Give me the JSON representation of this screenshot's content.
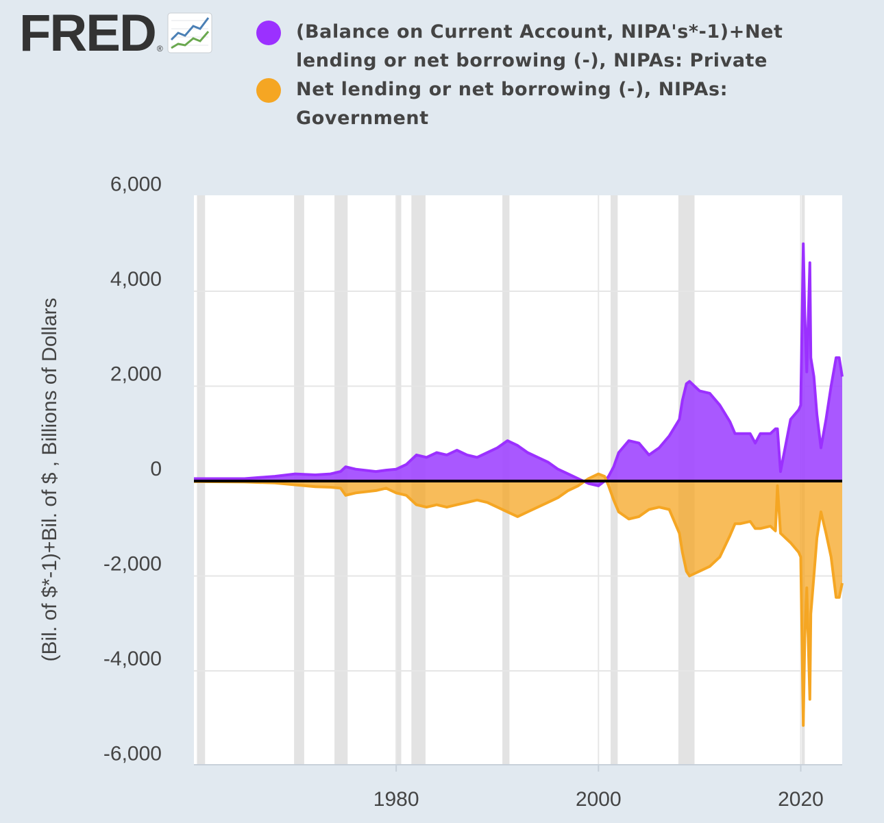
{
  "logo": {
    "text": "FRED",
    "reg": "®",
    "icon": "line-chart-icon"
  },
  "chart_data": {
    "type": "area",
    "ylabel": "(Bil. of $*-1)+Bil. of $ , Billions of Dollars",
    "xlabel": "",
    "ylim": [
      -6000,
      6000
    ],
    "xlim": [
      1960,
      2024.1
    ],
    "ytick_labels": [
      "6,000",
      "4,000",
      "2,000",
      "0",
      "-2,000",
      "-4,000",
      "-6,000"
    ],
    "yticks": [
      6000,
      4000,
      2000,
      0,
      -2000,
      -4000,
      -6000
    ],
    "xtick_labels": [
      "1980",
      "2000",
      "2020"
    ],
    "xticks": [
      1980,
      2000,
      2020
    ],
    "grid": true,
    "legend_position": "top",
    "recessions": [
      [
        1960.3,
        1961.1
      ],
      [
        1969.9,
        1970.9
      ],
      [
        1973.9,
        1975.2
      ],
      [
        1980.0,
        1980.5
      ],
      [
        1981.5,
        1982.9
      ],
      [
        1990.5,
        1991.2
      ],
      [
        2001.2,
        2001.9
      ],
      [
        2007.9,
        2009.5
      ],
      [
        2020.1,
        2020.4
      ]
    ],
    "series": [
      {
        "name": "(Balance on Current Account, NIPA's*-1)+Net lending or net borrowing (-), NIPAs: Private",
        "color": "#9b30ff",
        "x": [
          1960,
          1965,
          1968,
          1970,
          1972,
          1973.5,
          1974.5,
          1975,
          1976,
          1978,
          1979,
          1980,
          1981,
          1982,
          1983,
          1984,
          1985,
          1986,
          1987,
          1988,
          1989,
          1990,
          1991,
          1992,
          1993,
          1994,
          1995,
          1996,
          1997,
          1998,
          1999,
          2000,
          2000.6,
          2001,
          2001.5,
          2002,
          2003,
          2004,
          2005,
          2006,
          2007,
          2008,
          2008.3,
          2008.7,
          2009,
          2009.5,
          2010,
          2011,
          2012,
          2013,
          2013.5,
          2014,
          2015,
          2015.5,
          2016,
          2017,
          2017.5,
          2017.7,
          2018,
          2019,
          2019.8,
          2020.0,
          2020.25,
          2020.4,
          2020.6,
          2020.9,
          2021.0,
          2021.3,
          2021.6,
          2022,
          2022.5,
          2023,
          2023.5,
          2023.8,
          2024.1
        ],
        "values": [
          50,
          50,
          100,
          150,
          130,
          150,
          200,
          300,
          250,
          200,
          230,
          250,
          350,
          550,
          500,
          600,
          550,
          650,
          550,
          500,
          600,
          700,
          850,
          750,
          600,
          500,
          400,
          250,
          150,
          50,
          -50,
          -100,
          0,
          100,
          300,
          600,
          850,
          800,
          550,
          700,
          950,
          1300,
          1700,
          2050,
          2100,
          2000,
          1900,
          1850,
          1600,
          1250,
          1000,
          1000,
          1000,
          800,
          1000,
          1000,
          1100,
          1100,
          200,
          1300,
          1500,
          1600,
          5000,
          3500,
          2300,
          4600,
          2600,
          2200,
          1400,
          700,
          1300,
          2000,
          2600,
          2600,
          2200
        ]
      },
      {
        "name": "Net lending or net borrowing (-), NIPAs: Government",
        "color": "#f5a623",
        "x": [
          1960,
          1965,
          1968,
          1970,
          1972,
          1973.5,
          1974.5,
          1975,
          1976,
          1978,
          1979,
          1980,
          1981,
          1982,
          1983,
          1984,
          1985,
          1986,
          1987,
          1988,
          1989,
          1990,
          1991,
          1992,
          1993,
          1994,
          1995,
          1996,
          1997,
          1998,
          1999,
          2000,
          2000.6,
          2001,
          2001.5,
          2002,
          2003,
          2004,
          2005,
          2006,
          2007,
          2008,
          2008.3,
          2008.7,
          2009,
          2009.5,
          2010,
          2011,
          2012,
          2013,
          2013.5,
          2014,
          2015,
          2015.5,
          2016,
          2017,
          2017.5,
          2017.7,
          2018,
          2019,
          2019.8,
          2020.0,
          2020.25,
          2020.4,
          2020.6,
          2020.9,
          2021.0,
          2021.3,
          2021.6,
          2022,
          2022.5,
          2023,
          2023.5,
          2023.8,
          2024.1
        ],
        "values": [
          -10,
          -20,
          -40,
          -80,
          -120,
          -130,
          -150,
          -300,
          -250,
          -200,
          -150,
          -250,
          -300,
          -500,
          -550,
          -500,
          -550,
          -500,
          -450,
          -400,
          -450,
          -550,
          -650,
          -750,
          -650,
          -550,
          -450,
          -350,
          -200,
          -100,
          50,
          150,
          100,
          -100,
          -400,
          -650,
          -800,
          -750,
          -600,
          -550,
          -600,
          -1100,
          -1500,
          -1900,
          -2000,
          -1950,
          -1900,
          -1800,
          -1600,
          -1150,
          -900,
          -900,
          -850,
          -1000,
          -1000,
          -950,
          -1050,
          -100,
          -1100,
          -1300,
          -1500,
          -1600,
          -5150,
          -3300,
          -2250,
          -4600,
          -2800,
          -2000,
          -1200,
          -650,
          -1100,
          -1600,
          -2450,
          -2450,
          -2150
        ]
      }
    ]
  }
}
